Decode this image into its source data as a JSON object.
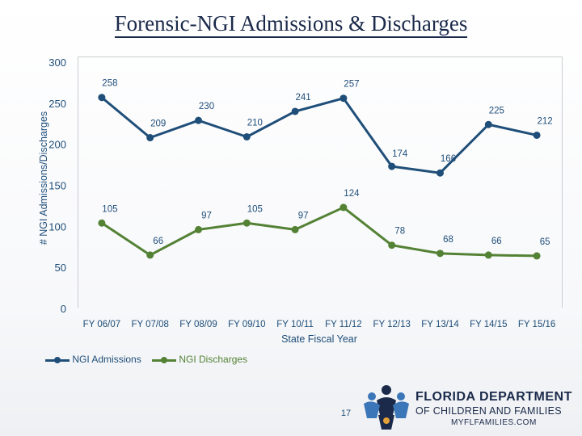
{
  "slide": {
    "title": "Forensic-NGI Admissions & Discharges",
    "page_number": "17"
  },
  "chart_data": {
    "type": "line",
    "title": "",
    "xlabel": "State Fiscal Year",
    "ylabel": "# NGI Admissions/Discharges",
    "ylim": [
      0,
      300
    ],
    "yticks": [
      0,
      50,
      100,
      150,
      200,
      250,
      300
    ],
    "grid": false,
    "legend_position": "bottom-left",
    "categories": [
      "FY 06/07",
      "FY 07/08",
      "FY 08/09",
      "FY 09/10",
      "FY 10/11",
      "FY 11/12",
      "FY 12/13",
      "FY 13/14",
      "FY 14/15",
      "FY 15/16"
    ],
    "series": [
      {
        "name": "NGI Admissions",
        "color": "#1f4e79",
        "values": [
          258,
          209,
          230,
          210,
          241,
          257,
          174,
          166,
          225,
          212
        ]
      },
      {
        "name": "NGI Discharges",
        "color": "#548235",
        "values": [
          105,
          66,
          97,
          105,
          97,
          124,
          78,
          68,
          66,
          65
        ]
      }
    ],
    "data_labels": true
  },
  "logo": {
    "org_line1": "FLORIDA DEPARTMENT",
    "org_line2": "OF CHILDREN AND FAMILIES",
    "website": "MYFLFAMILIES.COM",
    "icon": "families-figures-icon"
  }
}
